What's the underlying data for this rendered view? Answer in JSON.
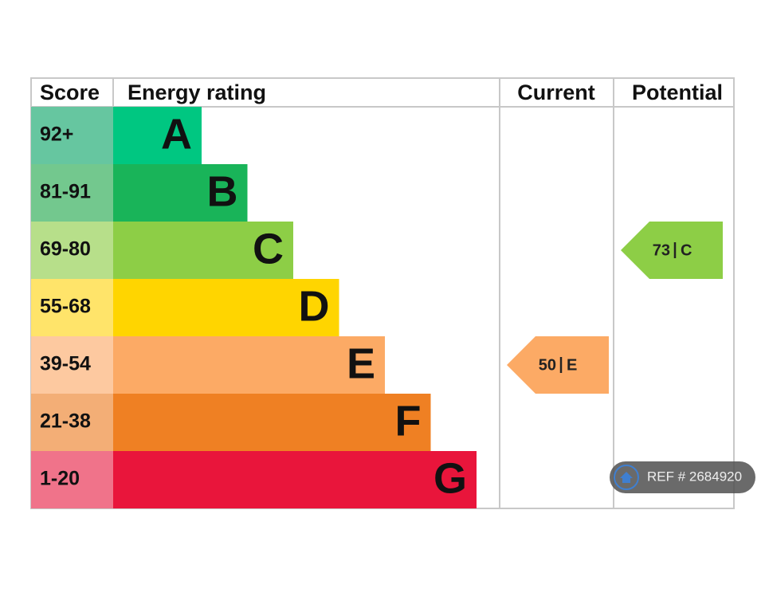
{
  "header": {
    "score": "Score",
    "energy_rating": "Energy rating",
    "current": "Current",
    "potential": "Potential"
  },
  "bands": [
    {
      "score": "92+",
      "rating": "A",
      "color": "#00c781",
      "score_color": "#66c6a0"
    },
    {
      "score": "81-91",
      "rating": "B",
      "color": "#19b459",
      "score_color": "#73c88e"
    },
    {
      "score": "69-80",
      "rating": "C",
      "color": "#8dce46",
      "score_color": "#b7df8a"
    },
    {
      "score": "55-68",
      "rating": "D",
      "color": "#ffd500",
      "score_color": "#ffe46a"
    },
    {
      "score": "39-54",
      "rating": "E",
      "color": "#fcaa65",
      "score_color": "#fdc9a0"
    },
    {
      "score": "21-38",
      "rating": "F",
      "color": "#ef8023",
      "score_color": "#f3ae76"
    },
    {
      "score": "1-20",
      "rating": "G",
      "color": "#e9153b",
      "score_color": "#f0738a"
    }
  ],
  "current": {
    "score": 50,
    "rating": "E"
  },
  "potential": {
    "score": 73,
    "rating": "C"
  },
  "watermark": "REF # 2684920"
}
